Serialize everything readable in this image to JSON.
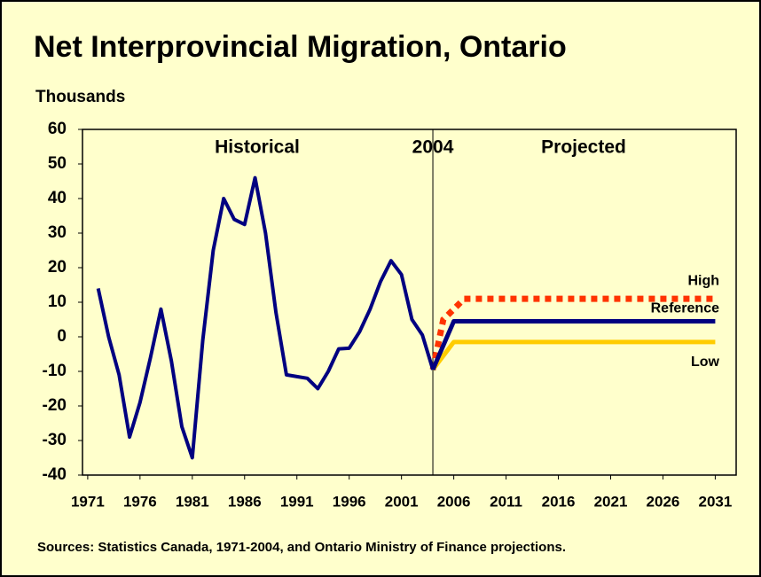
{
  "chart_data": {
    "type": "line",
    "title": "Net Interprovincial Migration, Ontario",
    "y_label": "Thousands",
    "source": "Sources: Statistics Canada, 1971-2004, and Ontario Ministry of Finance projections.",
    "annotations": [
      "Historical",
      "Projected"
    ],
    "vline": {
      "x": 2004,
      "label": "2004"
    },
    "xlim": [
      1970.5,
      2033
    ],
    "xticks": [
      1971,
      1976,
      1981,
      1986,
      1991,
      1996,
      2001,
      2006,
      2011,
      2016,
      2021,
      2026,
      2031
    ],
    "ylim": [
      -40,
      60
    ],
    "yticks": [
      -40,
      -30,
      -20,
      -10,
      0,
      10,
      20,
      30,
      40,
      50,
      60
    ],
    "series": [
      {
        "color": "#000080",
        "x": [
          1972,
          1973,
          1974,
          1975,
          1976,
          1977,
          1978,
          1979,
          1980,
          1981,
          1982,
          1983,
          1984,
          1985,
          1986,
          1987,
          1988,
          1989,
          1990,
          1991,
          1992,
          1993,
          1994,
          1995,
          1996,
          1997,
          1998,
          1999,
          2000,
          2001,
          2002,
          2003,
          2004
        ],
        "values": [
          14,
          0,
          -11,
          -29,
          -19,
          -6,
          8,
          -7,
          -26,
          -35,
          -1,
          25,
          40,
          34,
          32.5,
          46,
          30,
          7,
          -11,
          -11.5,
          -12,
          -15,
          -10,
          -3.5,
          -3.3,
          1.5,
          8,
          16,
          22,
          18,
          5,
          0.5,
          -9.5
        ]
      },
      {
        "name": "High",
        "color": "#ff3300",
        "x": [
          2004,
          2005,
          2007,
          2031
        ],
        "values": [
          -9.5,
          5,
          11,
          11
        ]
      },
      {
        "name": "Reference",
        "color": "#000080",
        "x": [
          2004,
          2006,
          2031
        ],
        "values": [
          -9.5,
          4.5,
          4.5
        ]
      },
      {
        "name": "Low",
        "color": "#ffcc00",
        "x": [
          2004,
          2006,
          2031
        ],
        "values": [
          -9.5,
          -1.5,
          -1.5
        ]
      }
    ]
  }
}
